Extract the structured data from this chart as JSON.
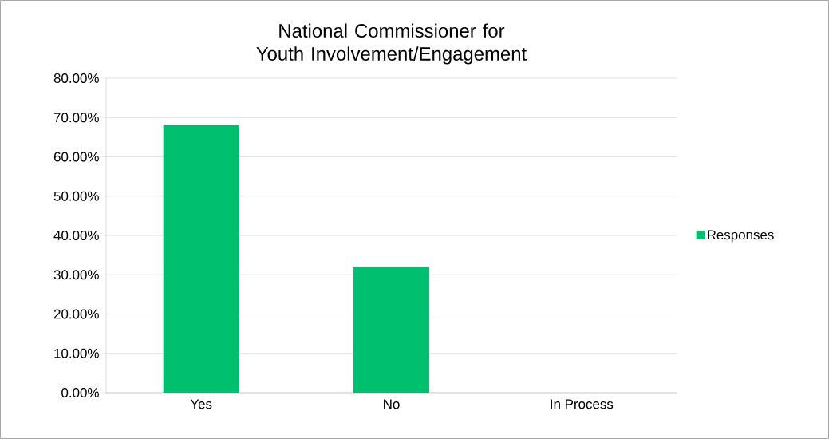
{
  "chart_data": {
    "type": "bar",
    "title": "National Commissioner for Youth Involvement/Engagement",
    "categories": [
      "Yes",
      "No",
      "In Process"
    ],
    "series": [
      {
        "name": "Responses",
        "color": "#00c070",
        "values": [
          68,
          32,
          0
        ]
      }
    ],
    "ylim": [
      0,
      80
    ],
    "yticks": [
      {
        "value": 0,
        "label": "0.00%"
      },
      {
        "value": 10,
        "label": "10.00%"
      },
      {
        "value": 20,
        "label": "20.00%"
      },
      {
        "value": 30,
        "label": "30.00%"
      },
      {
        "value": 40,
        "label": "40.00%"
      },
      {
        "value": 50,
        "label": "50.00%"
      },
      {
        "value": 60,
        "label": "60.00%"
      },
      {
        "value": 70,
        "label": "70.00%"
      },
      {
        "value": 80,
        "label": "80.00%"
      }
    ],
    "grid": "y",
    "legend": "right"
  }
}
